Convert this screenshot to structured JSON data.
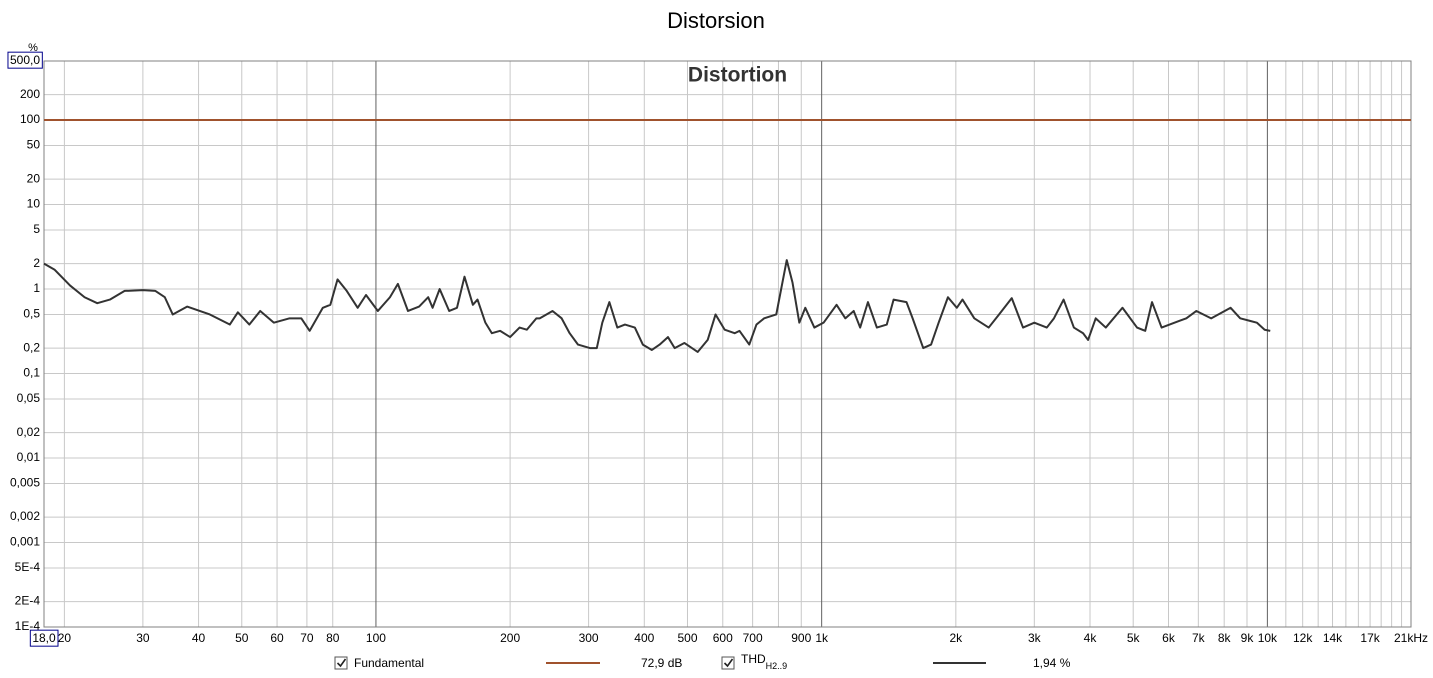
{
  "chart_data": {
    "type": "line",
    "title": "Distorsion",
    "subtitle": "Distortion",
    "ylabel": "%",
    "xscale": "log",
    "yscale": "log",
    "grid": true,
    "xlim": [
      18,
      21000
    ],
    "ylim": [
      0.0001,
      500
    ],
    "xticks": [
      {
        "value": 18,
        "label": "18,0",
        "boxed": true
      },
      20,
      30,
      40,
      50,
      60,
      70,
      80,
      100,
      200,
      300,
      400,
      500,
      600,
      700,
      900,
      {
        "value": 1000,
        "label": "1k"
      },
      {
        "value": 2000,
        "label": "2k"
      },
      {
        "value": 3000,
        "label": "3k"
      },
      {
        "value": 4000,
        "label": "4k"
      },
      {
        "value": 5000,
        "label": "5k"
      },
      {
        "value": 6000,
        "label": "6k"
      },
      {
        "value": 7000,
        "label": "7k"
      },
      {
        "value": 8000,
        "label": "8k"
      },
      {
        "value": 9000,
        "label": "9k"
      },
      {
        "value": 10000,
        "label": "10k"
      },
      {
        "value": 12000,
        "label": "12k",
        "muted": true
      },
      {
        "value": 14000,
        "label": "14k",
        "muted": true
      },
      {
        "value": 17000,
        "label": "17k",
        "muted": true
      },
      {
        "value": 21000,
        "label": "21kHz"
      }
    ],
    "xminor": [
      800,
      11000,
      13000,
      15000,
      16000,
      18000,
      19000,
      20000
    ],
    "yticks": [
      {
        "value": 500,
        "label": "500,0",
        "boxed": true
      },
      200,
      100,
      50,
      20,
      10,
      5,
      2,
      1,
      {
        "value": 0.5,
        "label": "0,5"
      },
      {
        "value": 0.2,
        "label": "0,2"
      },
      {
        "value": 0.1,
        "label": "0,1"
      },
      {
        "value": 0.05,
        "label": "0,05"
      },
      {
        "value": 0.02,
        "label": "0,02"
      },
      {
        "value": 0.01,
        "label": "0,01"
      },
      {
        "value": 0.005,
        "label": "0,005"
      },
      {
        "value": 0.002,
        "label": "0,002"
      },
      {
        "value": 0.001,
        "label": "0,001"
      },
      {
        "value": 0.0005,
        "label": "5E-4"
      },
      {
        "value": 0.0002,
        "label": "2E-4"
      },
      {
        "value": 0.0001,
        "label": "1E-4"
      }
    ],
    "series": [
      {
        "name": "Fundamental",
        "color": "#a0522d",
        "legend_value": "72,9 dB",
        "x": [
          18,
          21000
        ],
        "values": [
          100,
          100
        ]
      },
      {
        "name": "THD",
        "name_sub": "H2..9",
        "color": "#333333",
        "legend_value": "1,94 %",
        "x": [
          18,
          19,
          20.6,
          22.2,
          23.7,
          25.3,
          27.3,
          30,
          32,
          33.6,
          35,
          37.7,
          42.4,
          47,
          49,
          52,
          55,
          59,
          64,
          68,
          71,
          76,
          79,
          82,
          86,
          91,
          95,
          101,
          107.5,
          112,
          118,
          125,
          131,
          134,
          139,
          146,
          152,
          158,
          165,
          169,
          176,
          182,
          190,
          200,
          210,
          218,
          229,
          233,
          249,
          261,
          272,
          284,
          302,
          313,
          322,
          334,
          348,
          362,
          381,
          397,
          416,
          433,
          452,
          468,
          492,
          527,
          555,
          578,
          606,
          638,
          654,
          688,
          714,
          743,
          791,
          835,
          860,
          891,
          919,
          963,
          1010,
          1080,
          1130,
          1180,
          1220,
          1270,
          1330,
          1400,
          1450,
          1550,
          1600,
          1690,
          1760,
          1830,
          1920,
          2010,
          2070,
          2200,
          2370,
          2500,
          2670,
          2830,
          3000,
          3200,
          3320,
          3490,
          3680,
          3860,
          3960,
          4120,
          4340,
          4730,
          5100,
          5320,
          5510,
          5790,
          6350,
          6580,
          6930,
          7480,
          8270,
          8690,
          9140,
          9470,
          9860,
          10150
        ],
        "values": [
          2.0,
          1.7,
          1.1,
          0.8,
          0.68,
          0.75,
          0.95,
          0.97,
          0.95,
          0.8,
          0.5,
          0.62,
          0.5,
          0.38,
          0.53,
          0.38,
          0.55,
          0.4,
          0.45,
          0.45,
          0.32,
          0.6,
          0.65,
          1.3,
          0.95,
          0.6,
          0.85,
          0.55,
          0.8,
          1.15,
          0.55,
          0.62,
          0.8,
          0.6,
          1.0,
          0.55,
          0.6,
          1.4,
          0.65,
          0.75,
          0.4,
          0.3,
          0.32,
          0.27,
          0.35,
          0.33,
          0.45,
          0.45,
          0.55,
          0.45,
          0.3,
          0.22,
          0.2,
          0.2,
          0.4,
          0.7,
          0.35,
          0.38,
          0.35,
          0.22,
          0.19,
          0.22,
          0.27,
          0.2,
          0.23,
          0.18,
          0.25,
          0.5,
          0.33,
          0.3,
          0.32,
          0.22,
          0.38,
          0.45,
          0.5,
          2.2,
          1.2,
          0.4,
          0.6,
          0.35,
          0.4,
          0.65,
          0.45,
          0.55,
          0.35,
          0.7,
          0.35,
          0.38,
          0.75,
          0.7,
          0.45,
          0.2,
          0.22,
          0.4,
          0.8,
          0.6,
          0.75,
          0.45,
          0.35,
          0.5,
          0.78,
          0.35,
          0.4,
          0.35,
          0.45,
          0.75,
          0.35,
          0.3,
          0.25,
          0.45,
          0.35,
          0.6,
          0.35,
          0.32,
          0.7,
          0.35,
          0.42,
          0.45,
          0.55,
          0.45,
          0.6,
          0.45,
          0.42,
          0.4,
          0.33,
          0.32
        ]
      }
    ]
  }
}
